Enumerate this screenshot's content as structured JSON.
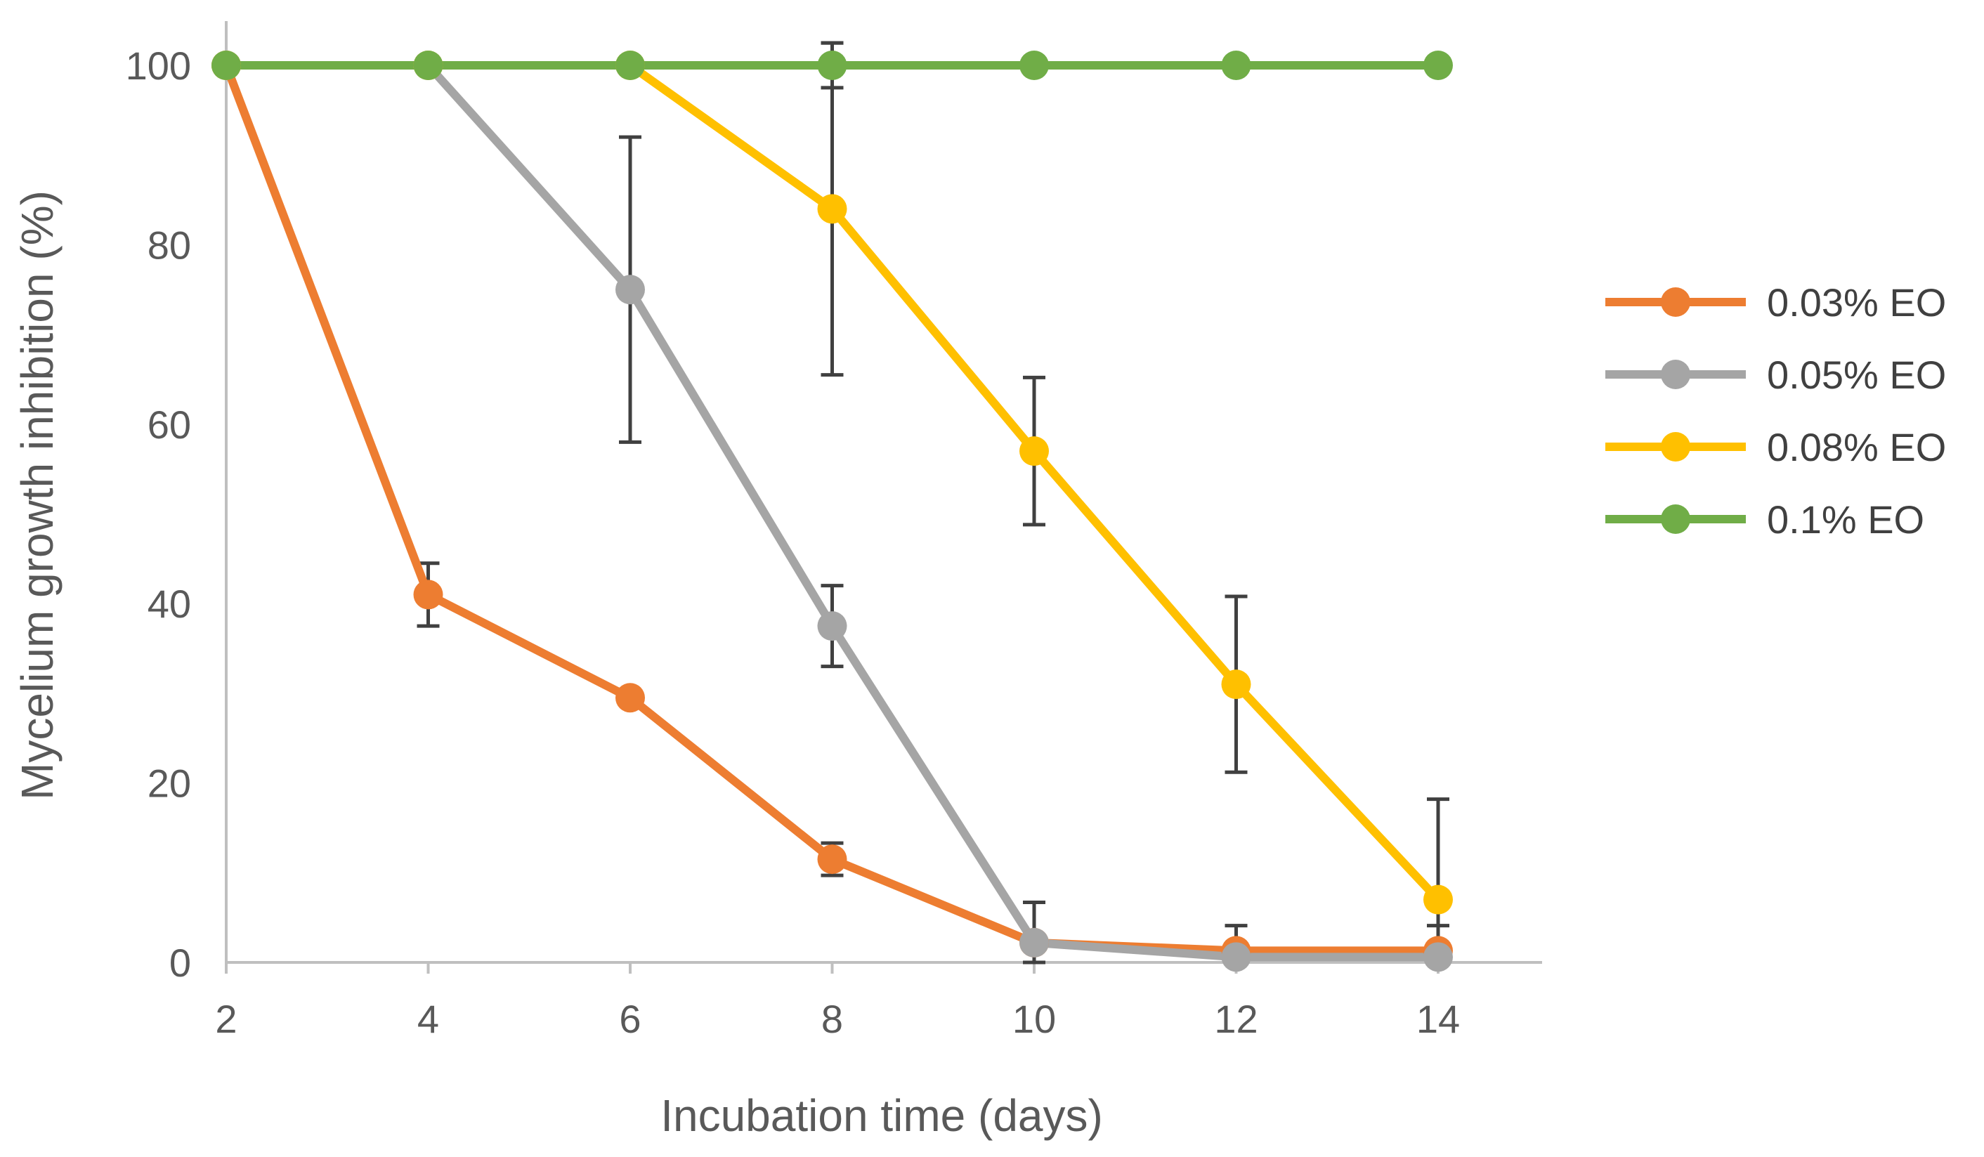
{
  "chart_data": {
    "type": "line",
    "title": "",
    "xlabel": "Incubation time (days)",
    "ylabel": "Mycelium growth inhibition (%)",
    "x": [
      2,
      4,
      6,
      8,
      10,
      12,
      14
    ],
    "x_tick_labels": [
      "2",
      "4",
      "6",
      "8",
      "10",
      "12",
      "14"
    ],
    "xlim": [
      2,
      15
    ],
    "ylim": [
      0,
      100
    ],
    "y_ticks": [
      0,
      20,
      40,
      60,
      80,
      100
    ],
    "y_tick_labels": [
      "0",
      "20",
      "40",
      "60",
      "80",
      "100"
    ],
    "grid": false,
    "legend_position": "right",
    "error_bar_color": "#404040",
    "axis_color": "#BFBFBF",
    "series": [
      {
        "name": "0.03% EO",
        "color": "#ED7D31",
        "values": [
          100,
          41,
          29.5,
          11.5,
          2.2,
          1.3,
          1.3
        ],
        "errors": [
          0,
          3.5,
          0,
          1.8,
          0,
          0,
          0
        ]
      },
      {
        "name": "0.05% EO",
        "color": "#A5A5A5",
        "values": [
          100,
          100,
          75,
          37.5,
          2.2,
          0.6,
          0.6
        ],
        "errors": [
          0,
          0,
          17,
          4.5,
          4.5,
          3.5,
          3.5
        ]
      },
      {
        "name": "0.08% EO",
        "color": "#FFC000",
        "values": [
          100,
          100,
          100,
          84,
          57,
          31,
          7
        ],
        "errors": [
          0,
          0,
          0,
          18.5,
          8.2,
          9.8,
          11.2
        ]
      },
      {
        "name": "0.1% EO",
        "color": "#70AD47",
        "values": [
          100,
          100,
          100,
          100,
          100,
          100,
          100
        ],
        "errors": [
          0,
          0,
          0,
          2.5,
          0,
          0,
          0
        ]
      }
    ]
  }
}
